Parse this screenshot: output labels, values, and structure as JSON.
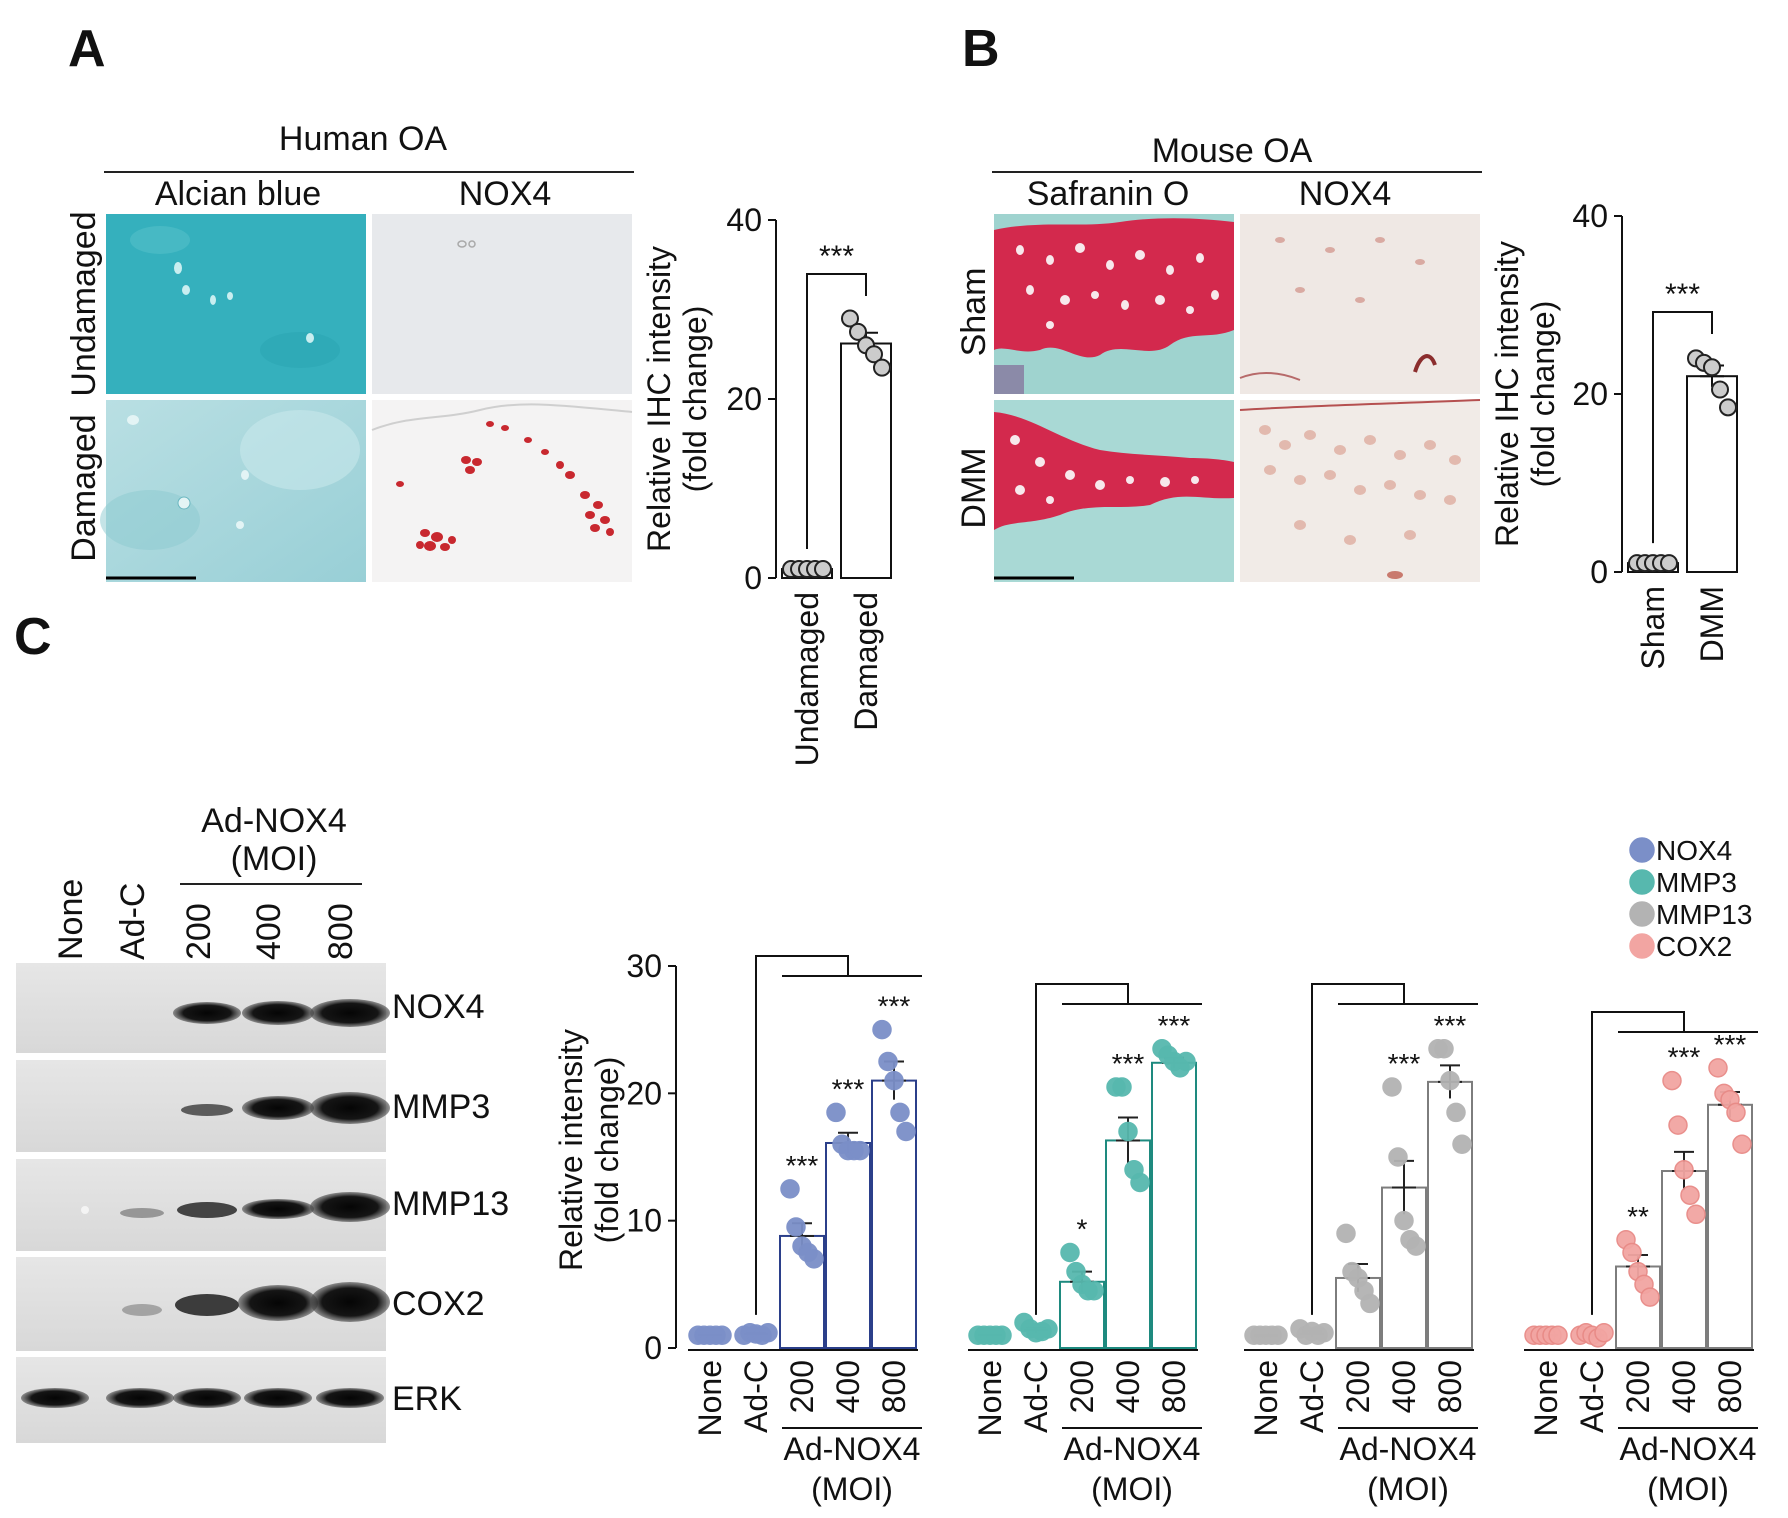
{
  "panels": {
    "a": "A",
    "b": "B",
    "c": "C"
  },
  "panel_a": {
    "group_title": "Human OA",
    "columns": [
      "Alcian blue",
      "NOX4"
    ],
    "rows": [
      "Undamaged",
      "Damaged"
    ]
  },
  "panel_b": {
    "group_title": "Mouse OA",
    "columns": [
      "Safranin  O",
      "NOX4"
    ],
    "rows": [
      "Sham",
      "DMM"
    ]
  },
  "panel_c_blot": {
    "lanes": [
      "None",
      "Ad-C",
      "200",
      "400",
      "800"
    ],
    "group_label_line1": "Ad-NOX4",
    "group_label_line2": "(MOI)",
    "bands": [
      "NOX4",
      "MMP3",
      "MMP13",
      "COX2",
      "ERK"
    ]
  },
  "colors": {
    "NOX4": "#7b8fc8",
    "MMP3": "#57b8ae",
    "MMP13": "#b3b3b3",
    "COX2": "#f2a5a2",
    "NOX4_bar": "#2b3f8a",
    "MMP3_bar": "#1e8a7f",
    "MMP13_bar": "#7d7d7d",
    "COX2_bar": "#7d7d7d"
  },
  "chart_data": [
    {
      "id": "A",
      "type": "bar",
      "categories": [
        "Undamaged",
        "Damaged"
      ],
      "values": [
        1.0,
        26.2
      ],
      "errors": [
        0.1,
        1.2
      ],
      "points": [
        [
          1,
          1,
          1,
          1,
          1
        ],
        [
          29,
          27.5,
          26,
          25,
          23.5
        ]
      ],
      "ylabel_line1": "Relative IHC intensity",
      "ylabel_line2": "(fold change)",
      "ylim": [
        0,
        40
      ],
      "yticks": [
        "0",
        "20",
        "40"
      ],
      "significance": "***"
    },
    {
      "id": "B",
      "type": "bar",
      "categories": [
        "Sham",
        "DMM"
      ],
      "values": [
        1.0,
        22.0
      ],
      "errors": [
        0.1,
        1.2
      ],
      "points": [
        [
          1,
          1,
          1,
          1,
          1
        ],
        [
          24,
          23.5,
          23,
          20.5,
          18.5
        ]
      ],
      "ylabel_line1": "Relative IHC intensity",
      "ylabel_line2": "(fold change)",
      "ylim": [
        0,
        40
      ],
      "yticks": [
        "0",
        "20",
        "40"
      ],
      "significance": "***"
    },
    {
      "id": "C",
      "type": "bar",
      "ylabel_line1": "Relative intensity",
      "ylabel_line2": "(fold change)",
      "ylim": [
        0,
        30
      ],
      "yticks": [
        "0",
        "10",
        "20",
        "30"
      ],
      "categories": [
        "None",
        "Ad-C",
        "200",
        "400",
        "800"
      ],
      "group_label_line1": "Ad-NOX4",
      "group_label_line2": "(MOI)",
      "legend": [
        "NOX4",
        "MMP3",
        "MMP13",
        "COX2"
      ],
      "series": [
        {
          "name": "NOX4",
          "values": [
            1.0,
            1.1,
            8.8,
            16.1,
            21.0
          ],
          "errors": [
            0.0,
            0.1,
            1.0,
            0.8,
            1.5
          ],
          "points": [
            [
              1,
              1,
              1,
              1,
              1
            ],
            [
              1,
              1.2,
              1.1,
              1,
              1.2
            ],
            [
              12.5,
              9.5,
              8,
              7.5,
              7
            ],
            [
              18.5,
              16,
              15.5,
              15.5,
              15.5
            ],
            [
              25,
              22.5,
              21,
              18.5,
              17
            ]
          ],
          "stars": [
            "",
            "",
            "***",
            "***",
            "***"
          ]
        },
        {
          "name": "MMP3",
          "values": [
            1.0,
            1.4,
            5.2,
            16.3,
            22.4
          ],
          "errors": [
            0.0,
            0.2,
            0.8,
            1.8,
            0.4
          ],
          "points": [
            [
              1,
              1,
              1,
              1,
              1
            ],
            [
              2,
              1.5,
              1.2,
              1.3,
              1.5
            ],
            [
              7.5,
              6,
              5,
              4.5,
              4.5
            ],
            [
              20.5,
              20.5,
              17,
              14,
              13
            ],
            [
              23.5,
              23,
              22.5,
              22,
              22.5
            ]
          ],
          "stars": [
            "",
            "",
            "*",
            "***",
            "***"
          ]
        },
        {
          "name": "MMP13",
          "values": [
            1.0,
            1.1,
            5.5,
            12.6,
            20.9
          ],
          "errors": [
            0.0,
            0.2,
            1.1,
            2.1,
            1.3
          ],
          "points": [
            [
              1,
              1,
              1,
              1,
              1
            ],
            [
              1.5,
              1,
              1.3,
              1,
              1.2
            ],
            [
              9,
              6,
              5.5,
              4.5,
              3.5
            ],
            [
              20.5,
              15,
              10,
              8.5,
              8
            ],
            [
              23.5,
              23.5,
              21,
              18.5,
              16
            ]
          ],
          "stars": [
            "",
            "",
            "",
            "***",
            "***"
          ]
        },
        {
          "name": "COX2",
          "values": [
            1.0,
            1.0,
            6.4,
            13.9,
            19.1
          ],
          "errors": [
            0.0,
            0.1,
            0.9,
            1.5,
            1.0
          ],
          "points": [
            [
              1,
              1,
              1,
              1,
              1
            ],
            [
              1,
              1.2,
              1,
              0.8,
              1.2
            ],
            [
              8.5,
              7.5,
              6,
              5,
              4
            ],
            [
              21,
              17.5,
              14,
              12,
              10.5
            ],
            [
              22,
              20,
              19.5,
              18.5,
              16
            ]
          ],
          "stars": [
            "",
            "",
            "**",
            "***",
            "***"
          ]
        }
      ]
    }
  ]
}
